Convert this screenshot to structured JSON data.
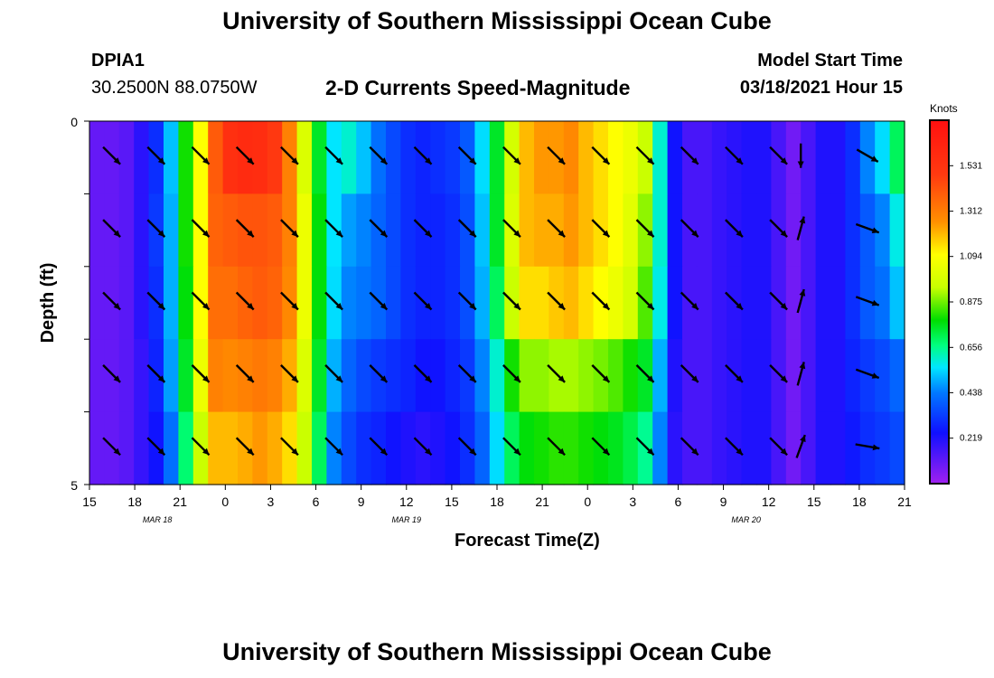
{
  "header": {
    "title": "University of Southern Mississippi Ocean Cube",
    "station_id": "DPIA1",
    "coordinates": "30.2500N 88.0750W",
    "subtitle": "2-D Currents Speed-Magnitude",
    "model_start_label": "Model Start Time",
    "model_start_value": "03/18/2021 Hour 15"
  },
  "footer": {
    "title": "University of Southern Mississippi Ocean Cube"
  },
  "colorbar": {
    "units": "Knots",
    "ticks": [
      "1.531",
      "1.312",
      "1.094",
      "0.875",
      "0.656",
      "0.438",
      "0.219"
    ],
    "tick_values": [
      1.531,
      1.312,
      1.094,
      0.875,
      0.656,
      0.438,
      0.219
    ],
    "range": [
      0.0,
      1.75
    ]
  },
  "chart_data": {
    "type": "heatmap",
    "title": "2-D Currents Speed-Magnitude",
    "xlabel": "Forecast Time(Z)",
    "ylabel": "Depth (ft)",
    "x_tick_labels": [
      "15",
      "18",
      "21",
      "0",
      "3",
      "6",
      "9",
      "12",
      "15",
      "18",
      "21",
      "0",
      "3",
      "6",
      "9",
      "12",
      "15",
      "18",
      "21"
    ],
    "date_labels": [
      {
        "text": "MAR 18",
        "tick_index": 1.5
      },
      {
        "text": "MAR 19",
        "tick_index": 7
      },
      {
        "text": "MAR 20",
        "tick_index": 14.5
      }
    ],
    "y_tick_labels": [
      "0",
      "5"
    ],
    "ylim": [
      0,
      5
    ],
    "depth_layers": 5,
    "hours": [
      15,
      16,
      17,
      18,
      19,
      20,
      21,
      22,
      23,
      0,
      1,
      2,
      3,
      4,
      5,
      6,
      7,
      8,
      9,
      10,
      11,
      12,
      13,
      14,
      15,
      16,
      17,
      18,
      19,
      20,
      21,
      22,
      23,
      0,
      1,
      2,
      3,
      4,
      5,
      6,
      7,
      8,
      9,
      10,
      11,
      12,
      13,
      14,
      15,
      16,
      17,
      18,
      19,
      20,
      21
    ],
    "speed_knots": [
      [
        0.1,
        0.1,
        0.12,
        0.2,
        0.3,
        0.52,
        0.8,
        1.1,
        1.4,
        1.55,
        1.58,
        1.57,
        1.5,
        1.3,
        1.0,
        0.75,
        0.56,
        0.6,
        0.52,
        0.42,
        0.35,
        0.3,
        0.28,
        0.3,
        0.32,
        0.38,
        0.55,
        0.75,
        0.98,
        1.2,
        1.25,
        1.25,
        1.28,
        1.2,
        1.15,
        1.1,
        1.05,
        0.95,
        0.6,
        0.25,
        0.15,
        0.15,
        0.18,
        0.2,
        0.22,
        0.22,
        0.15,
        0.08,
        0.15,
        0.22,
        0.22,
        0.3,
        0.45,
        0.55,
        0.7
      ],
      [
        0.1,
        0.1,
        0.12,
        0.2,
        0.32,
        0.5,
        0.8,
        1.1,
        1.38,
        1.4,
        1.42,
        1.42,
        1.4,
        1.3,
        1.05,
        0.78,
        0.56,
        0.48,
        0.45,
        0.4,
        0.35,
        0.3,
        0.28,
        0.28,
        0.3,
        0.36,
        0.52,
        0.75,
        1.0,
        1.2,
        1.22,
        1.22,
        1.25,
        1.2,
        1.15,
        1.1,
        1.02,
        0.9,
        0.6,
        0.25,
        0.15,
        0.15,
        0.18,
        0.2,
        0.22,
        0.22,
        0.15,
        0.08,
        0.15,
        0.22,
        0.22,
        0.3,
        0.38,
        0.45,
        0.58
      ],
      [
        0.1,
        0.1,
        0.12,
        0.2,
        0.3,
        0.5,
        0.78,
        1.1,
        1.35,
        1.35,
        1.38,
        1.4,
        1.38,
        1.28,
        1.05,
        0.78,
        0.55,
        0.45,
        0.43,
        0.4,
        0.35,
        0.3,
        0.28,
        0.28,
        0.3,
        0.36,
        0.5,
        0.7,
        0.95,
        1.15,
        1.15,
        1.18,
        1.2,
        1.15,
        1.1,
        1.05,
        0.98,
        0.85,
        0.58,
        0.25,
        0.15,
        0.15,
        0.18,
        0.2,
        0.22,
        0.22,
        0.15,
        0.08,
        0.15,
        0.22,
        0.22,
        0.3,
        0.38,
        0.42,
        0.52
      ],
      [
        0.1,
        0.1,
        0.12,
        0.18,
        0.28,
        0.48,
        0.75,
        1.05,
        1.3,
        1.28,
        1.3,
        1.32,
        1.3,
        1.22,
        1.0,
        0.75,
        0.5,
        0.4,
        0.35,
        0.32,
        0.3,
        0.28,
        0.25,
        0.25,
        0.28,
        0.32,
        0.45,
        0.6,
        0.8,
        0.9,
        0.9,
        0.92,
        0.92,
        0.9,
        0.88,
        0.85,
        0.8,
        0.75,
        0.5,
        0.22,
        0.15,
        0.15,
        0.18,
        0.2,
        0.22,
        0.22,
        0.15,
        0.08,
        0.15,
        0.22,
        0.22,
        0.28,
        0.32,
        0.35,
        0.4
      ],
      [
        0.1,
        0.1,
        0.12,
        0.18,
        0.25,
        0.42,
        0.68,
        0.95,
        1.2,
        1.2,
        1.22,
        1.25,
        1.22,
        1.15,
        0.95,
        0.7,
        0.45,
        0.35,
        0.3,
        0.28,
        0.25,
        0.22,
        0.2,
        0.22,
        0.25,
        0.3,
        0.4,
        0.55,
        0.7,
        0.78,
        0.8,
        0.82,
        0.82,
        0.8,
        0.78,
        0.76,
        0.72,
        0.65,
        0.45,
        0.2,
        0.15,
        0.15,
        0.18,
        0.2,
        0.22,
        0.22,
        0.15,
        0.08,
        0.15,
        0.22,
        0.22,
        0.26,
        0.3,
        0.32,
        0.35
      ]
    ],
    "arrow_columns": [
      {
        "hour_index": 1,
        "direction_deg": [
          135,
          135,
          135,
          135,
          135
        ]
      },
      {
        "hour_index": 4,
        "direction_deg": [
          135,
          135,
          135,
          135,
          135
        ]
      },
      {
        "hour_index": 7,
        "direction_deg": [
          135,
          135,
          135,
          135,
          135
        ]
      },
      {
        "hour_index": 10,
        "direction_deg": [
          135,
          135,
          135,
          135,
          135
        ]
      },
      {
        "hour_index": 13,
        "direction_deg": [
          135,
          135,
          135,
          135,
          135
        ]
      },
      {
        "hour_index": 16,
        "direction_deg": [
          135,
          135,
          135,
          135,
          135
        ]
      },
      {
        "hour_index": 19,
        "direction_deg": [
          135,
          135,
          135,
          135,
          135
        ]
      },
      {
        "hour_index": 22,
        "direction_deg": [
          135,
          135,
          135,
          135,
          135
        ]
      },
      {
        "hour_index": 25,
        "direction_deg": [
          135,
          135,
          135,
          135,
          135
        ]
      },
      {
        "hour_index": 28,
        "direction_deg": [
          135,
          135,
          135,
          135,
          135
        ]
      },
      {
        "hour_index": 31,
        "direction_deg": [
          135,
          135,
          135,
          135,
          135
        ]
      },
      {
        "hour_index": 34,
        "direction_deg": [
          135,
          135,
          135,
          135,
          135
        ]
      },
      {
        "hour_index": 37,
        "direction_deg": [
          135,
          135,
          135,
          135,
          135
        ]
      },
      {
        "hour_index": 40,
        "direction_deg": [
          135,
          135,
          135,
          135,
          135
        ]
      },
      {
        "hour_index": 43,
        "direction_deg": [
          135,
          135,
          135,
          135,
          135
        ]
      },
      {
        "hour_index": 46,
        "direction_deg": [
          135,
          135,
          135,
          135,
          135
        ]
      },
      {
        "hour_index": 47.5,
        "direction_deg": [
          180,
          15,
          15,
          15,
          20
        ]
      },
      {
        "hour_index": 52,
        "direction_deg": [
          120,
          110,
          110,
          110,
          100
        ]
      }
    ]
  }
}
